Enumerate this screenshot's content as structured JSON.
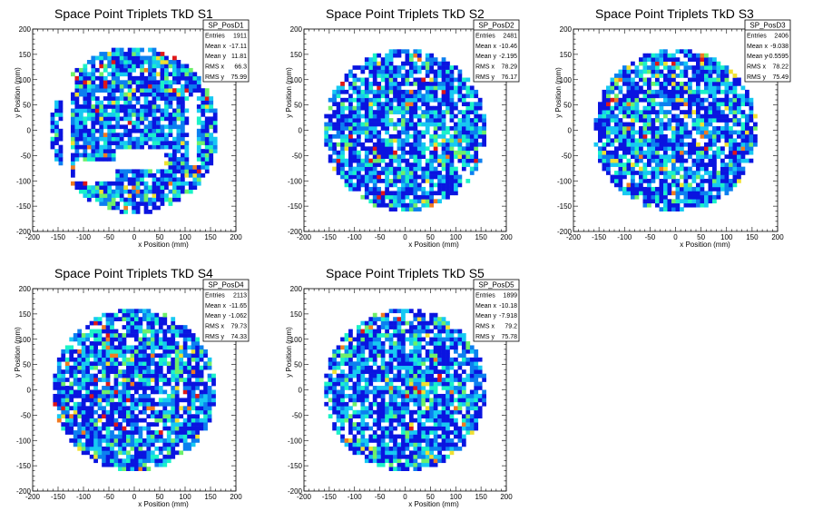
{
  "chart_data": [
    {
      "type": "heatmap",
      "title": "Space Point Triplets TkD S1",
      "xlabel": "x Position (mm)",
      "ylabel": "y Position (mm)",
      "xlim": [
        -200,
        200
      ],
      "ylim": [
        -200,
        200
      ],
      "xticks": [
        "-200",
        "-150",
        "-100",
        "-50",
        "0",
        "50",
        "100",
        "150",
        "200"
      ],
      "yticks": [
        "-200",
        "-150",
        "-100",
        "-50",
        "0",
        "50",
        "100",
        "150",
        "200"
      ],
      "stats_box": {
        "name": "SP_PosD1",
        "rows": [
          [
            "Entries",
            "1911"
          ],
          [
            "Mean x",
            "-17.11"
          ],
          [
            "Mean y",
            "11.81"
          ],
          [
            "RMS x",
            "66.3"
          ],
          [
            "RMS y",
            "75.99"
          ]
        ]
      },
      "data_region": {
        "radius": 165,
        "gaps": true
      },
      "seed": 11
    },
    {
      "type": "heatmap",
      "title": "Space Point Triplets TkD S2",
      "xlabel": "x Position (mm)",
      "ylabel": "y Position (mm)",
      "xlim": [
        -200,
        200
      ],
      "ylim": [
        -200,
        200
      ],
      "xticks": [
        "-200",
        "-150",
        "-100",
        "-50",
        "0",
        "50",
        "100",
        "150",
        "200"
      ],
      "yticks": [
        "-200",
        "-150",
        "-100",
        "-50",
        "0",
        "50",
        "100",
        "150",
        "200"
      ],
      "stats_box": {
        "name": "SP_PosD2",
        "rows": [
          [
            "Entries",
            "2481"
          ],
          [
            "Mean x",
            "-10.46"
          ],
          [
            "Mean y",
            "-2.195"
          ],
          [
            "RMS x",
            "78.29"
          ],
          [
            "RMS y",
            "76.17"
          ]
        ]
      },
      "data_region": {
        "radius": 160,
        "gaps": false
      },
      "seed": 23
    },
    {
      "type": "heatmap",
      "title": "Space Point Triplets TkD S3",
      "xlabel": "x Position (mm)",
      "ylabel": "y Position (mm)",
      "xlim": [
        -200,
        200
      ],
      "ylim": [
        -200,
        200
      ],
      "xticks": [
        "-200",
        "-150",
        "-100",
        "-50",
        "0",
        "50",
        "100",
        "150",
        "200"
      ],
      "yticks": [
        "-200",
        "-150",
        "-100",
        "-50",
        "0",
        "50",
        "100",
        "150",
        "200"
      ],
      "stats_box": {
        "name": "SP_PosD3",
        "rows": [
          [
            "Entries",
            "2406"
          ],
          [
            "Mean x",
            "-9.038"
          ],
          [
            "Mean y",
            "-0.5595"
          ],
          [
            "RMS x",
            "78.22"
          ],
          [
            "RMS y",
            "75.49"
          ]
        ]
      },
      "data_region": {
        "radius": 160,
        "gaps": false
      },
      "seed": 37
    },
    {
      "type": "heatmap",
      "title": "Space Point Triplets TkD S4",
      "xlabel": "x Position (mm)",
      "ylabel": "y Position (mm)",
      "xlim": [
        -200,
        200
      ],
      "ylim": [
        -200,
        200
      ],
      "xticks": [
        "-200",
        "-150",
        "-100",
        "-50",
        "0",
        "50",
        "100",
        "150",
        "200"
      ],
      "yticks": [
        "-200",
        "-150",
        "-100",
        "-50",
        "0",
        "50",
        "100",
        "150",
        "200"
      ],
      "stats_box": {
        "name": "SP_PosD4",
        "rows": [
          [
            "Entries",
            "2113"
          ],
          [
            "Mean x",
            "-11.65"
          ],
          [
            "Mean y",
            "-1.062"
          ],
          [
            "RMS x",
            "79.73"
          ],
          [
            "RMS y",
            "74.33"
          ]
        ]
      },
      "data_region": {
        "radius": 160,
        "gaps": false
      },
      "seed": 41
    },
    {
      "type": "heatmap",
      "title": "Space Point Triplets TkD S5",
      "xlabel": "x Position (mm)",
      "ylabel": "y Position (mm)",
      "xlim": [
        -200,
        200
      ],
      "ylim": [
        -200,
        200
      ],
      "xticks": [
        "-200",
        "-150",
        "-100",
        "-50",
        "0",
        "50",
        "100",
        "150",
        "200"
      ],
      "yticks": [
        "-200",
        "-150",
        "-100",
        "-50",
        "0",
        "50",
        "100",
        "150",
        "200"
      ],
      "stats_box": {
        "name": "SP_PosD5",
        "rows": [
          [
            "Entries",
            "1899"
          ],
          [
            "Mean x",
            "-10.18"
          ],
          [
            "Mean y",
            "-7.918"
          ],
          [
            "RMS x",
            "79.2"
          ],
          [
            "RMS y",
            "75.78"
          ]
        ]
      },
      "data_region": {
        "radius": 160,
        "gaps": false
      },
      "seed": 53
    }
  ],
  "colors": {
    "palette": [
      "#0a14e0",
      "#0c7ff0",
      "#17c9f2",
      "#1bf2c8",
      "#6ef06a",
      "#f0e030",
      "#f07a20",
      "#e01818"
    ],
    "axis": "#000000"
  }
}
